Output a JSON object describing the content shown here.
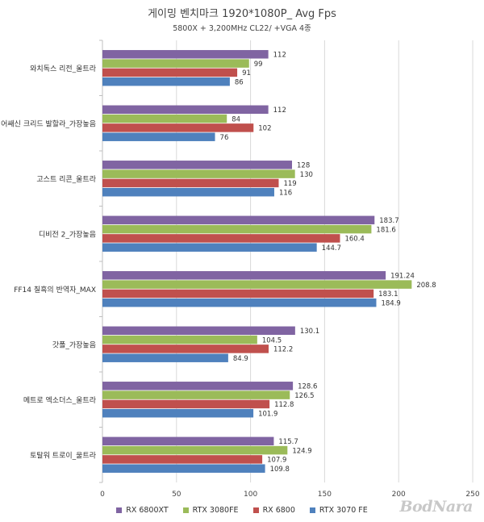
{
  "header": {
    "title": "게이밍 벤치마크 1920*1080P_ Avg Fps",
    "subtitle": "5800X + 3,200MHz CL22/ +VGA 4종"
  },
  "watermark": "BodNara",
  "colors": {
    "RX 6800XT": "#8064a2",
    "RTX 3080FE": "#9bbb59",
    "RX 6800": "#c0504d",
    "RTX 3070 FE": "#4f81bd"
  },
  "chart_data": {
    "type": "bar",
    "orientation": "horizontal",
    "categories": [
      "와치독스 리전_울트라",
      "어쌔신 크리드 발할라_가장높음",
      "고스트 리콘_울트라",
      "디비전 2_가장높음",
      "FF14 칠흑의 반역자_MAX",
      "갓폴_가장높음",
      "메트로 엑소더스_울트라",
      "토탈워 트로이_울트라"
    ],
    "series": [
      {
        "name": "RX 6800XT",
        "values": [
          112,
          112,
          128,
          183.7,
          191.24,
          130.1,
          128.6,
          115.7
        ],
        "labels": [
          "112",
          "112",
          "128",
          "183.7",
          "191.24",
          "130.1",
          "128.6",
          "115.7"
        ]
      },
      {
        "name": "RTX 3080FE",
        "values": [
          99,
          84,
          130,
          181.6,
          208.8,
          104.5,
          126.5,
          124.9
        ],
        "labels": [
          "99",
          "84",
          "130",
          "181.6",
          "208.8",
          "104.5",
          "126.5",
          "124.9"
        ]
      },
      {
        "name": "RX 6800",
        "values": [
          91,
          102,
          119,
          160.4,
          183.1,
          112.2,
          112.8,
          107.9
        ],
        "labels": [
          "91",
          "102",
          "119",
          "160.4",
          "183.1",
          "112.2",
          "112.8",
          "107.9"
        ]
      },
      {
        "name": "RTX 3070 FE",
        "values": [
          86,
          76,
          116,
          144.7,
          184.9,
          84.9,
          101.9,
          109.8
        ],
        "labels": [
          "86",
          "76",
          "116",
          "144.7",
          "184.9",
          "84.9",
          "101.9",
          "109.8"
        ]
      }
    ],
    "xlim": [
      0,
      250
    ],
    "xticks": [
      "0",
      "50",
      "100",
      "150",
      "200",
      "250"
    ],
    "grid": true,
    "legend_position": "bottom"
  }
}
